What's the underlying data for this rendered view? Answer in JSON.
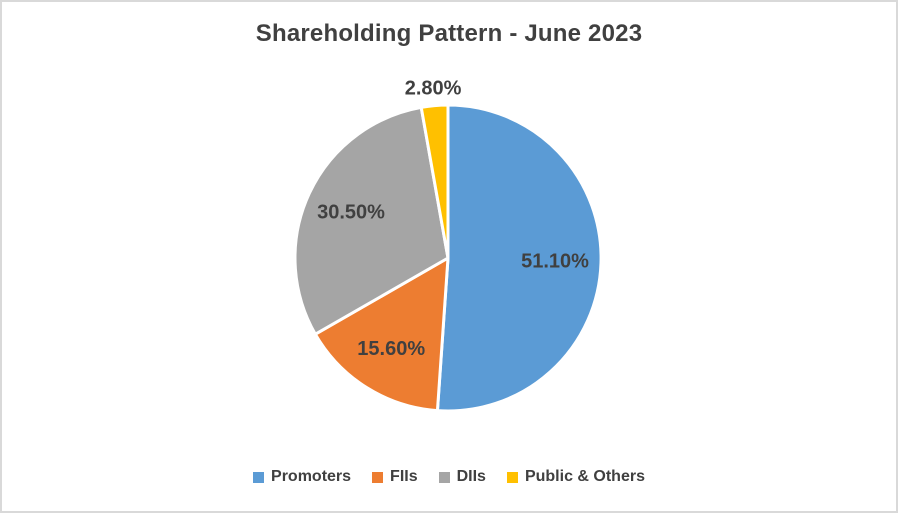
{
  "chart_data": {
    "type": "pie",
    "title": "Shareholding Pattern - June 2023",
    "categories": [
      "Promoters",
      "FIIs",
      "DIIs",
      "Public & Others"
    ],
    "values": [
      51.1,
      15.6,
      30.5,
      2.8
    ],
    "labels": [
      "51.10%",
      "15.60%",
      "30.50%",
      "2.80%"
    ],
    "colors": [
      "#5B9BD5",
      "#ED7D31",
      "#A5A5A5",
      "#FFC000"
    ],
    "start_angle_deg": 0,
    "direction": "clockwise",
    "legend_position": "bottom",
    "slice_divider_color": "#FFFFFF",
    "label_color": "#404040",
    "title_color": "#404040",
    "frame_border_color": "#D9D9D9",
    "background": "#FFFFFF",
    "outside_label_threshold_pct": 5
  }
}
